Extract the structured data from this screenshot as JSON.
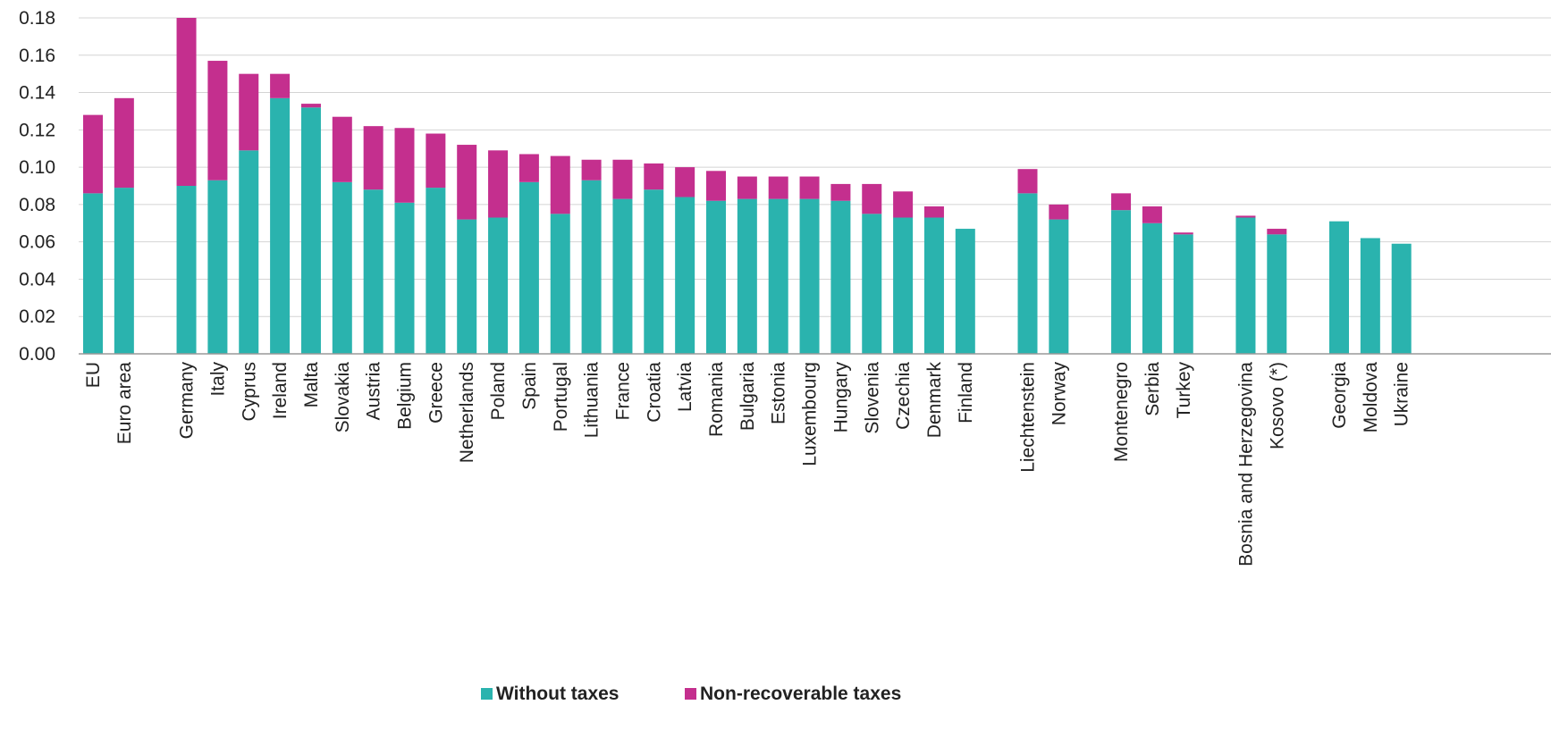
{
  "chart_data": {
    "type": "bar",
    "stacked": true,
    "ylim": [
      0,
      0.18
    ],
    "yticks": [
      "0.00",
      "0.02",
      "0.04",
      "0.06",
      "0.08",
      "0.10",
      "0.12",
      "0.14",
      "0.16",
      "0.18"
    ],
    "grid": true,
    "legend_position": "bottom-center",
    "categories": [
      "EU",
      "Euro area",
      "Germany",
      "Italy",
      "Cyprus",
      "Ireland",
      "Malta",
      "Slovakia",
      "Austria",
      "Belgium",
      "Greece",
      "Netherlands",
      "Poland",
      "Spain",
      "Portugal",
      "Lithuania",
      "France",
      "Croatia",
      "Latvia",
      "Romania",
      "Bulgaria",
      "Estonia",
      "Luxembourg",
      "Hungary",
      "Slovenia",
      "Czechia",
      "Denmark",
      "Finland",
      "Liechtenstein",
      "Norway",
      "Montenegro",
      "Serbia",
      "Turkey",
      "Bosnia and Herzegovina",
      "Kosovo (*)",
      "Georgia",
      "Moldova",
      "Ukraine"
    ],
    "groups": [
      2,
      26,
      2,
      3,
      2,
      3
    ],
    "series": [
      {
        "name": "Without taxes",
        "color": "#2ab3ae",
        "values": [
          0.086,
          0.089,
          0.09,
          0.093,
          0.109,
          0.137,
          0.132,
          0.092,
          0.088,
          0.081,
          0.089,
          0.072,
          0.073,
          0.092,
          0.075,
          0.093,
          0.083,
          0.088,
          0.084,
          0.082,
          0.083,
          0.083,
          0.083,
          0.082,
          0.075,
          0.073,
          0.073,
          0.067,
          0.086,
          0.072,
          0.077,
          0.07,
          0.064,
          0.073,
          0.064,
          0.071,
          0.062,
          0.059
        ]
      },
      {
        "name": "Non-recoverable taxes",
        "color": "#c42f8e",
        "values": [
          0.042,
          0.048,
          0.09,
          0.064,
          0.041,
          0.013,
          0.002,
          0.035,
          0.034,
          0.04,
          0.029,
          0.04,
          0.036,
          0.015,
          0.031,
          0.011,
          0.021,
          0.014,
          0.016,
          0.016,
          0.012,
          0.012,
          0.012,
          0.009,
          0.016,
          0.014,
          0.006,
          0.0,
          0.013,
          0.008,
          0.009,
          0.009,
          0.001,
          0.001,
          0.003,
          0.0,
          0.0,
          0.0
        ]
      }
    ]
  }
}
